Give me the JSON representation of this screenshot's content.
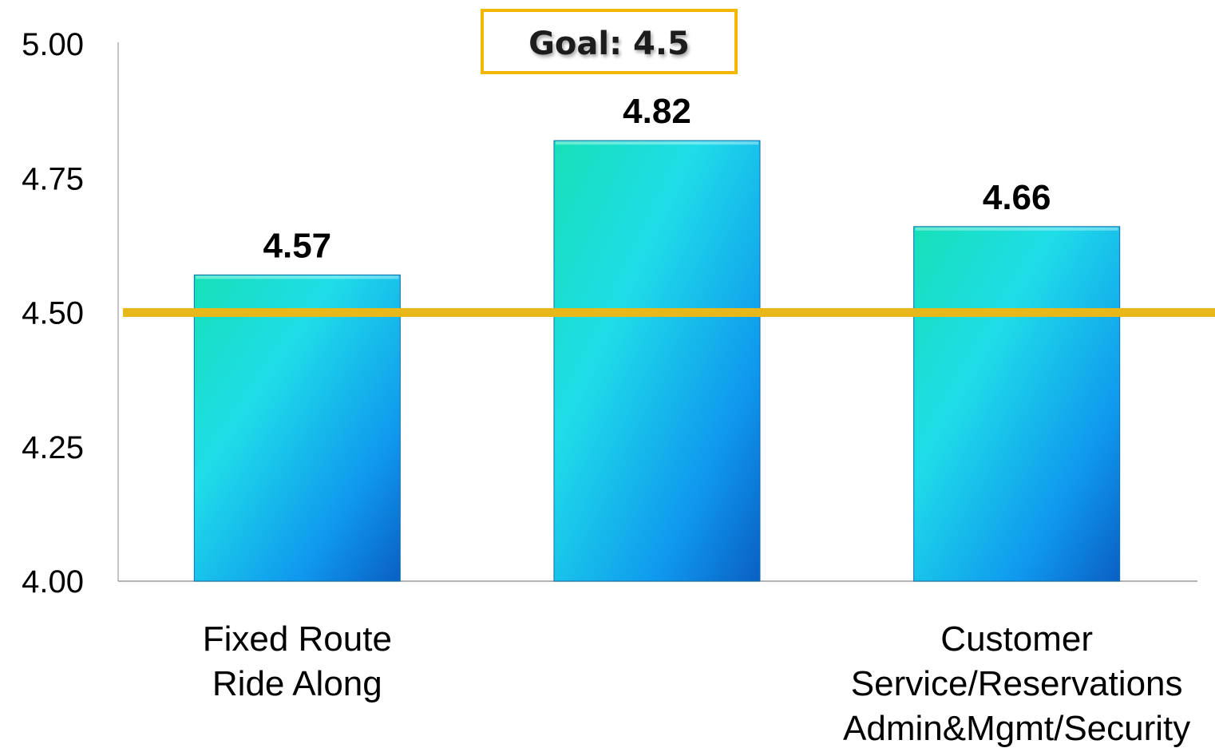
{
  "chart_data": {
    "type": "bar",
    "categories": [
      [
        "Fixed Route",
        "Ride Along"
      ],
      [],
      [
        "Customer",
        "Service/Reservations",
        "Admin&Mgmt/Security"
      ]
    ],
    "values": [
      4.57,
      4.82,
      4.66
    ],
    "value_labels": [
      "4.57",
      "4.82",
      "4.66"
    ],
    "ylim": [
      4.0,
      5.0
    ],
    "yticks": [
      "4.00",
      "4.25",
      "4.50",
      "4.75",
      "5.00"
    ],
    "grid": false,
    "goal": {
      "value": 4.5,
      "label": "Goal:  4.5"
    },
    "colors": {
      "bar_top": "#19e0c4",
      "bar_mid": "#1ec8ee",
      "bar_bottom": "#0a7fe0",
      "goal_line": "#e8b81a",
      "goal_box": "#f2b800"
    }
  }
}
